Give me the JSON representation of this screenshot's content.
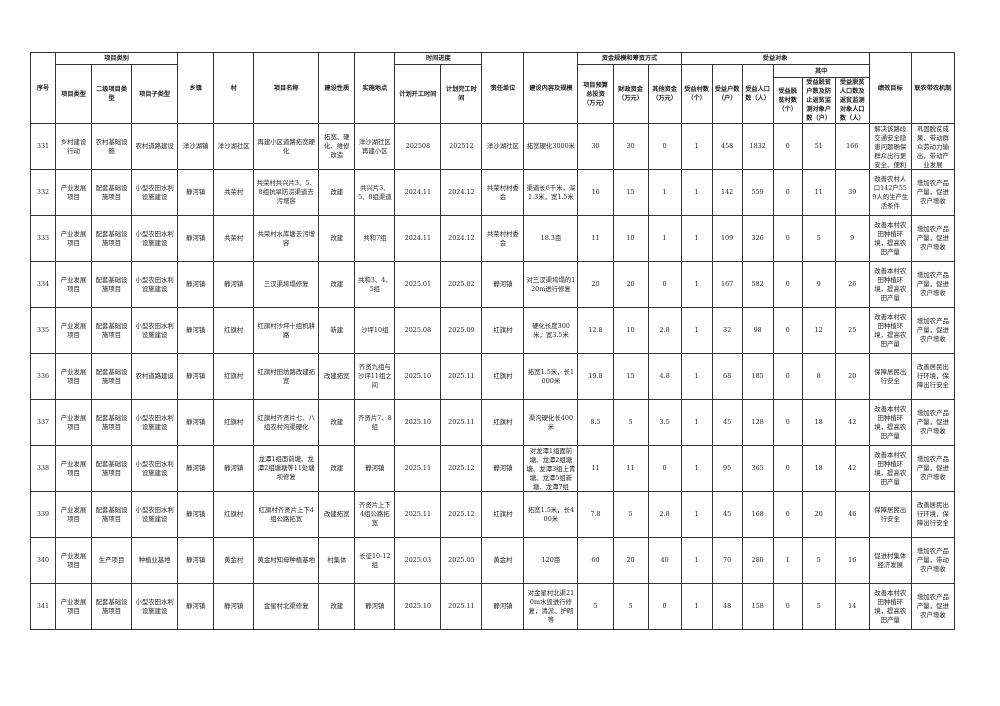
{
  "headers": {
    "seq": "序号",
    "category_group": "项目类别",
    "project_type": "项目类型",
    "second_type": "二级项目类型",
    "sub_type": "项目子类型",
    "town": "乡镇",
    "village": "村",
    "project_name": "项目名称",
    "nature": "建设性质",
    "location": "实施地点",
    "schedule_group": "时间进度",
    "start": "计划开工时间",
    "end": "计划完工时间",
    "owner": "责任单位",
    "content": "建设内容及规模",
    "funds_group": "资金规模和筹资方式",
    "total": "项目预算总投资（万元）",
    "fiscal": "财政资金（万元）",
    "other": "其他资金（万元）",
    "beneficiary_group": "受益对象",
    "villages": "受益村数（个）",
    "households": "受益户数（户）",
    "population": "受益人口数（人）",
    "of_which": "其中",
    "poor_villages": "受益脱贫村数（个）",
    "poor_households": "受益脱贫户数及防止返贫监测对象户数（户）",
    "poor_population": "受益脱贫人口数及返贫监测对象人口数（人）",
    "goal": "绩效目标",
    "mechanism": "联农带农机制"
  },
  "rows": [
    [
      "331",
      "乡村建设行动",
      "农村基础设施",
      "农村道路建设",
      "洋沙湖镇",
      "洋沙湖社区",
      "再建小区道路拓宽硬化",
      "拓宽、硬化、维修改造",
      "洋沙湖社区再建小区",
      "202508",
      "202512",
      "洋沙湖社区",
      "拓宽硬化3000米",
      "30",
      "30",
      "0",
      "1",
      "458",
      "1832",
      "0",
      "51",
      "166",
      "解决该路段交通安全隐患问题确保群众出行更安全、便利",
      "巩固脱贫成果，带动群众劳动力输出，带动产业发展"
    ],
    [
      "332",
      "产业发展项目",
      "配套基础设施项目",
      "小型农田水利设施建设",
      "静河镇",
      "共荣村",
      "共荣村共兴片3、5、8组抗旱防涝渠道去污增容",
      "改建",
      "共兴片3、5、8组渠道",
      "2024.11",
      "2024.12",
      "共荣村村委会",
      "渠道长6千米，深1.3米，宽1.5米",
      "16",
      "15",
      "1",
      "1",
      "142",
      "559",
      "0",
      "11",
      "39",
      "改善农村人口142户559人的生产生活条件",
      "增加农产品产量，促进农户增收"
    ],
    [
      "333",
      "产业发展项目",
      "配套基础设施项目",
      "小型农田水利设施建设",
      "静河镇",
      "共荣村",
      "共荣村水库塘去污增容",
      "改建",
      "共和7组",
      "2024.11",
      "2024.12",
      "共荣村村委会",
      "18.3亩",
      "11",
      "10",
      "1",
      "1",
      "109",
      "326",
      "0",
      "5",
      "9",
      "改善本村农田种植环境，提高农田产量",
      "增加农产品产量，促进农户增收"
    ],
    [
      "334",
      "产业发展项目",
      "配套基础设施项目",
      "小型农田水利设施建设",
      "静河镇",
      "静河镇",
      "三汊渠垮塌修复",
      "改建",
      "共和3、4、5组",
      "2025.01",
      "2025.02",
      "静河镇",
      "对三汊渠垮塌的120m进行修复",
      "20",
      "20",
      "0",
      "1",
      "167",
      "582",
      "0",
      "9",
      "26",
      "改善本村农田种植环境，提高农田产量",
      "增加农产品产量，促进农户增收"
    ],
    [
      "335",
      "产业发展项目",
      "配套基础设施项目",
      "小型农田水利设施建设",
      "静河镇",
      "红旗村",
      "红旗村沙坪十组机耕路",
      "新建",
      "沙坪10组",
      "2025.08",
      "2025.09",
      "红旗村",
      "硬化长度300米，宽3.5米",
      "12.8",
      "10",
      "2.8",
      "1",
      "32",
      "98",
      "0",
      "12",
      "25",
      "改善本村农田种植环境，提高农田产量",
      "增加农产品产量，促进农户增收"
    ],
    [
      "336",
      "产业发展项目",
      "配套基础设施项目",
      "农村道路建设",
      "静河镇",
      "红旗村",
      "红旗村田坊路改建拓宽",
      "改建拓宽",
      "齐贤九组与沙坪11组之间",
      "2025.10",
      "2025.11",
      "红旗村",
      "拓宽1.5米，长1000米",
      "19.8",
      "15",
      "4.8",
      "1",
      "68",
      "185",
      "0",
      "8",
      "20",
      "保障居民出行安全",
      "改善居民出行环境，保障出行安全"
    ],
    [
      "337",
      "产业发展项目",
      "配套基础设施项目",
      "小型农田水利设施建设",
      "静河镇",
      "红旗村",
      "红旗村齐贤片七、八组农村沟渠硬化",
      "改建",
      "齐贤片7、8组",
      "2025.10",
      "2025.11",
      "红旗村",
      "渠沟硬化长400米",
      "8.5",
      "5",
      "3.5",
      "1",
      "45",
      "128",
      "0",
      "18",
      "42",
      "改善本村农田种植环境，提高农田产量",
      "增加农产品产量，促进农户增收"
    ],
    [
      "338",
      "产业发展项目",
      "配套基础设施项目",
      "小型农田水利设施建设",
      "静河镇",
      "静河镇",
      "龙潭1组面前塘、龙潭2组塘塘等11处塘坝修复",
      "改建",
      "静河镇",
      "2025.11",
      "2025.12",
      "静河镇",
      "对龙潭1组面前塘、龙潭2组塘塘、龙潭3组上青塘、龙潭5组新塘、龙潭7组",
      "11",
      "11",
      "0",
      "1",
      "95",
      "365",
      "0",
      "18",
      "42",
      "改善本村农田种植环境，提高农田产量",
      "增加农产品产量，促进农户增收"
    ],
    [
      "339",
      "产业发展项目",
      "配套基础设施项目",
      "小型农田水利设施建设",
      "静河镇",
      "红旗村",
      "红旗村齐贤片上下4组公路拓宽",
      "改建拓宽",
      "齐贤片上下4组公路拓宽",
      "2025.11",
      "2025.12",
      "红旗村",
      "拓宽1.5米，长400米",
      "7.8",
      "5",
      "2.8",
      "1",
      "45",
      "168",
      "0",
      "20",
      "46",
      "保障居民出行安全",
      "改善居民出行环境，保障出行安全"
    ],
    [
      "340",
      "产业发展项目",
      "生产项目",
      "种植业基地",
      "静河镇",
      "黄金村",
      "黄金村知母种植基地",
      "村集体",
      "长征10-12组",
      "2025.03",
      "2025.05",
      "黄金村",
      "120亩",
      "60",
      "20",
      "40",
      "1",
      "70",
      "280",
      "1",
      "5",
      "16",
      "促进村集体经济发展",
      "增加农产品产量，带动农户增收"
    ],
    [
      "341",
      "产业发展项目",
      "配套基础设施项目",
      "小型农田水利设施建设",
      "静河镇",
      "静河镇",
      "金星村北渠修复",
      "改建",
      "静河镇",
      "2025.10",
      "2025.11",
      "静河镇",
      "对金星村北渠210m水毁进行修复，清淤、护砌等",
      "5",
      "5",
      "0",
      "1",
      "48",
      "158",
      "0",
      "5",
      "14",
      "改善本村农田种植环境，提高农田产量",
      "增加农产品产量，促进农户增收"
    ]
  ]
}
